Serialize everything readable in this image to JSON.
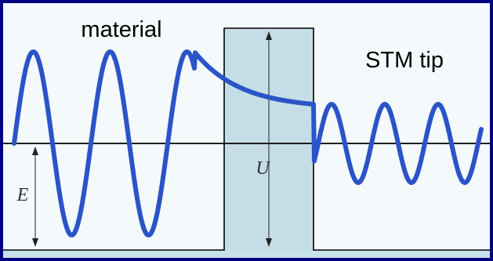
{
  "labels": {
    "material": "material",
    "tip": "STM tip",
    "barrier_height": "U",
    "energy": "E"
  },
  "colors": {
    "frame": "#000080",
    "panel": "#f4fafc",
    "barrier_fill": "#c5dde6",
    "floor_band": "#c8e2ec",
    "wave": "#2a54c8",
    "lines": "#000000"
  }
}
